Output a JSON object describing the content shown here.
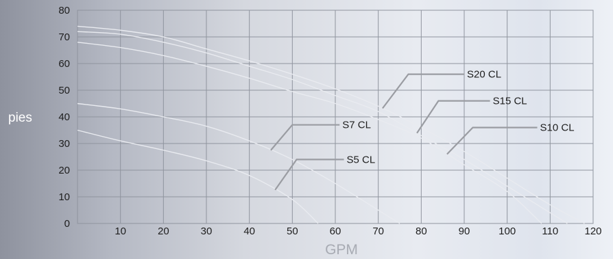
{
  "chart_data": {
    "type": "line",
    "title": "",
    "xlabel": "GPM",
    "ylabel": "pies",
    "xlim": [
      0,
      120
    ],
    "ylim": [
      0,
      80
    ],
    "x_ticks": [
      10,
      20,
      30,
      40,
      50,
      60,
      70,
      80,
      90,
      100,
      110,
      120
    ],
    "y_ticks": [
      0,
      10,
      20,
      30,
      40,
      50,
      60,
      70,
      80
    ],
    "grid": true,
    "colors": {
      "grid": "#8f949e",
      "curve": "#e9ebf0",
      "callout": "#9a9ca2",
      "xlabel": "#a8abb3",
      "ylabel": "#ffffff"
    },
    "series": [
      {
        "name": "S20 CL",
        "x": [
          0,
          10,
          20,
          30,
          40,
          50,
          60,
          70,
          80,
          90,
          100,
          110,
          118
        ],
        "y": [
          74,
          72.5,
          70,
          65.5,
          61,
          56,
          50.5,
          44,
          36,
          27,
          17,
          7,
          0
        ]
      },
      {
        "name": "S15 CL",
        "x": [
          0,
          10,
          20,
          30,
          40,
          50,
          60,
          70,
          80,
          90,
          100,
          110,
          114
        ],
        "y": [
          72,
          71,
          68,
          64,
          59,
          54,
          48,
          42,
          33,
          24,
          14,
          4,
          0
        ]
      },
      {
        "name": "S10 CL",
        "x": [
          0,
          10,
          20,
          30,
          40,
          50,
          60,
          70,
          80,
          90,
          100,
          108
        ],
        "y": [
          68,
          66,
          63,
          59,
          54.5,
          49.5,
          45,
          39,
          32,
          22,
          12,
          0
        ]
      },
      {
        "name": "S7 CL",
        "x": [
          0,
          10,
          20,
          30,
          40,
          50,
          60,
          70,
          75
        ],
        "y": [
          45,
          43,
          40,
          36.5,
          31,
          24,
          15,
          5,
          0
        ]
      },
      {
        "name": "S5 CL",
        "x": [
          0,
          10,
          20,
          30,
          40,
          50,
          56
        ],
        "y": [
          35,
          31,
          27.5,
          23.5,
          18,
          9,
          0
        ]
      }
    ],
    "callouts": [
      {
        "series": "S20 CL",
        "at_x": 71,
        "elbow_x": 77,
        "elbow_y": 56,
        "end_x": 90
      },
      {
        "series": "S15 CL",
        "at_x": 79,
        "elbow_x": 84,
        "elbow_y": 46,
        "end_x": 96
      },
      {
        "series": "S10 CL",
        "at_x": 86,
        "elbow_x": 92,
        "elbow_y": 36,
        "end_x": 107
      },
      {
        "series": "S7 CL",
        "at_x": 45,
        "elbow_x": 50,
        "elbow_y": 37,
        "end_x": 61
      },
      {
        "series": "S5 CL",
        "at_x": 46,
        "elbow_x": 51,
        "elbow_y": 24,
        "end_x": 62
      }
    ]
  }
}
